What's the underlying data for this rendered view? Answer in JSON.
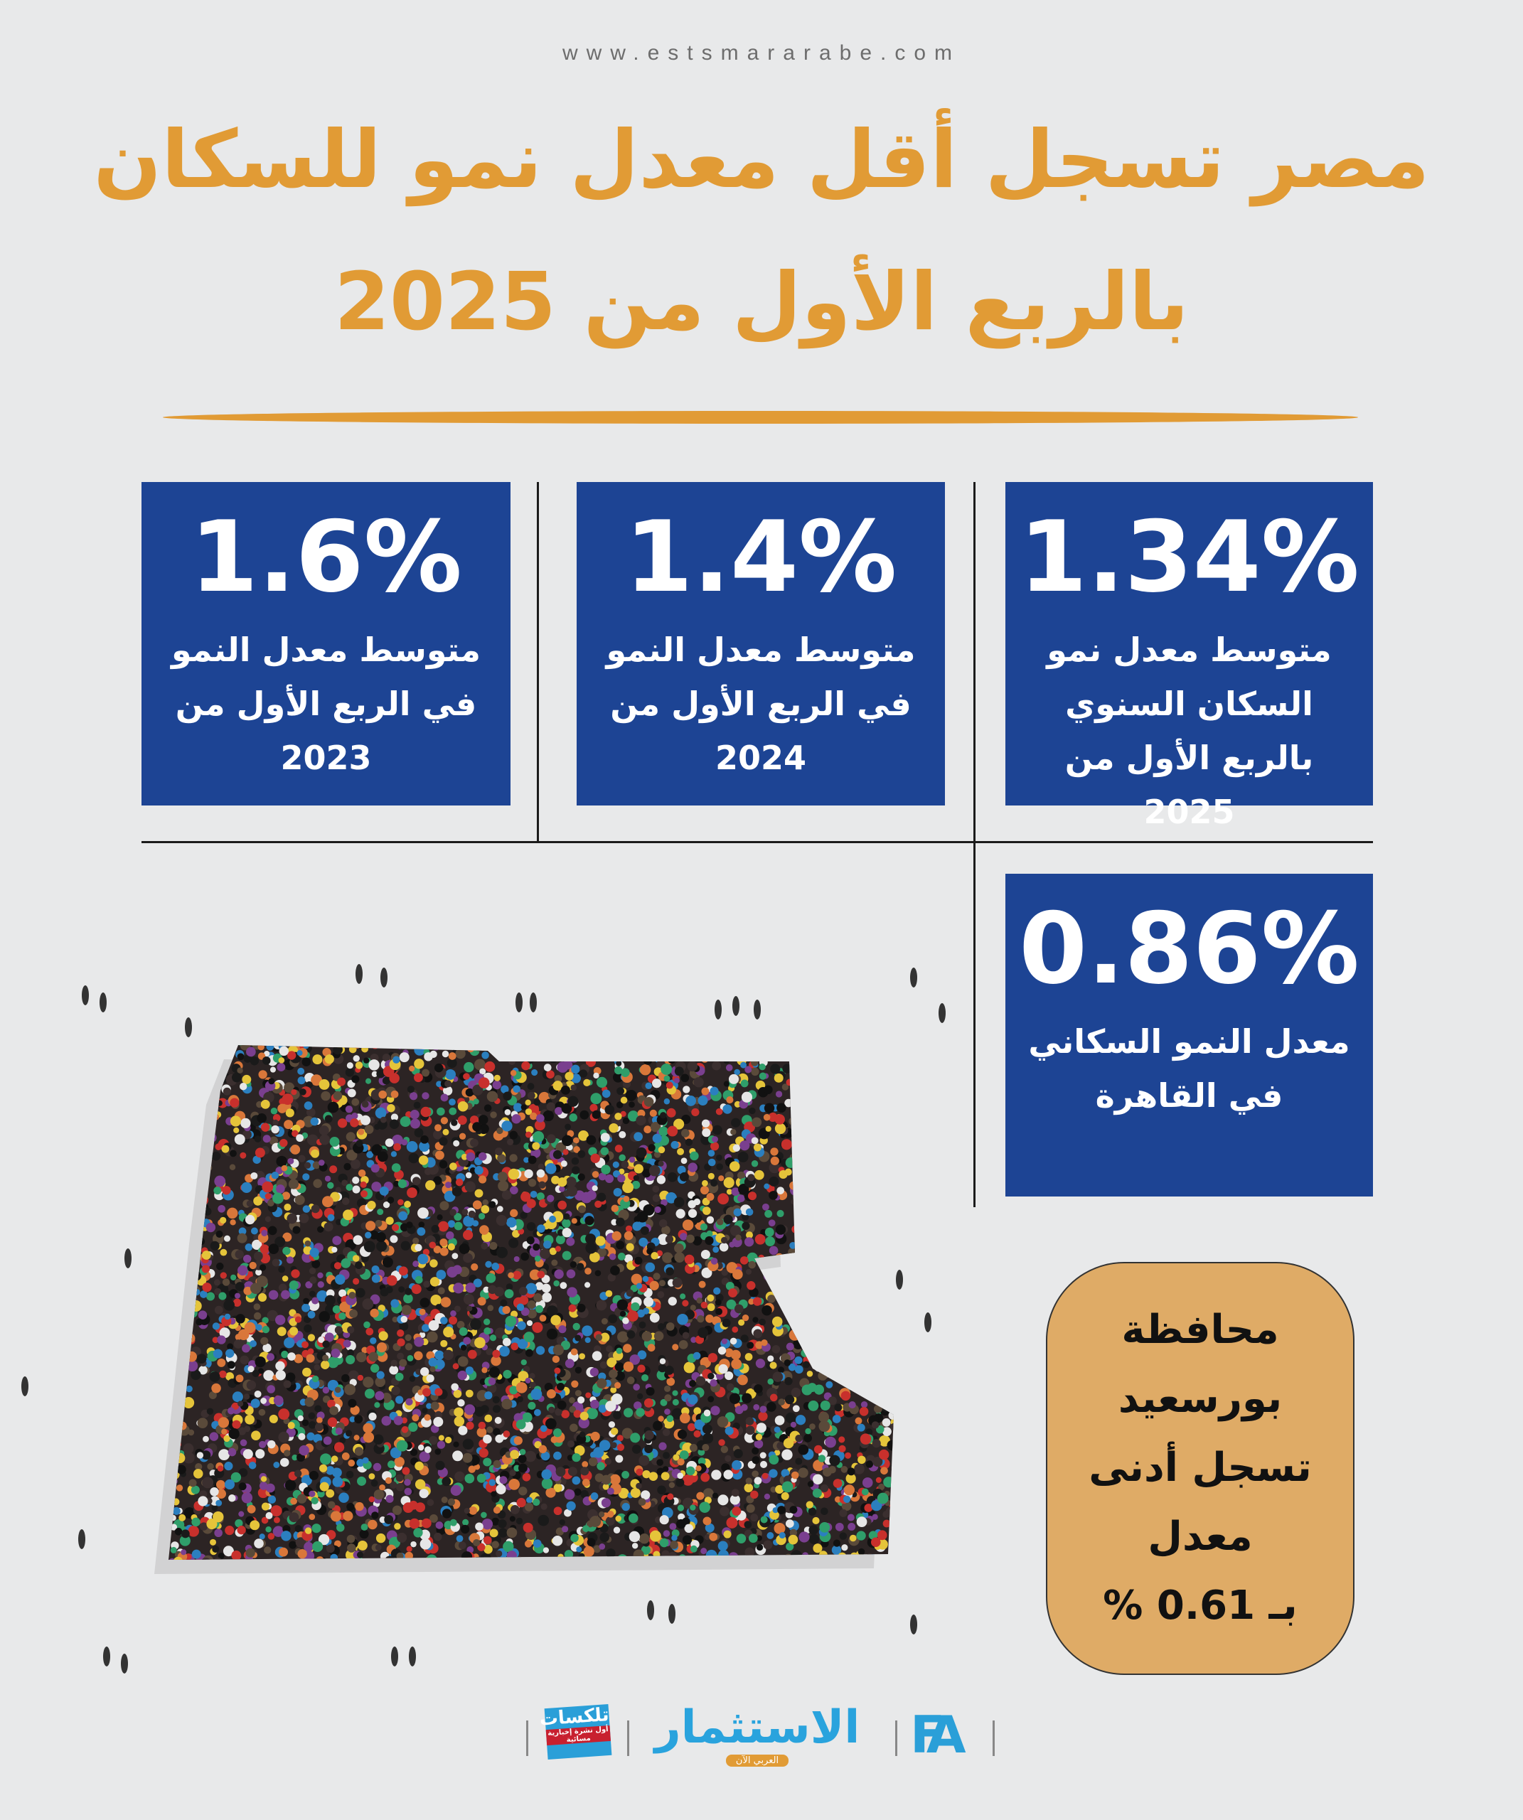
{
  "header": {
    "url": "www.estsmararabe.com",
    "title_line1": "مصر تسجل أقل معدل نمو للسكان",
    "title_line2": "بالربع الأول من 2025"
  },
  "stats": [
    {
      "value": "1.34%",
      "label": "متوسط معدل نمو السكان السنوي بالربع الأول من 2025"
    },
    {
      "value": "1.4%",
      "label": "متوسط معدل النمو في الربع الأول من 2024"
    },
    {
      "value": "1.6%",
      "label": "متوسط معدل النمو في الربع الأول من 2023"
    },
    {
      "value": "0.86%",
      "label": "معدل النمو السكاني في القاهرة"
    }
  ],
  "highlight": {
    "lines": [
      "محافظة",
      "بورسعيد",
      "تسجل أدنى",
      "معدل",
      "بـ 0.61 %"
    ]
  },
  "logos": {
    "talksat": "تلكسات",
    "talksat_tag": "أول نشرة إخبارية مسائية",
    "estsmar": "الاستثمار",
    "estsmar_tag": "العربي الآن",
    "fa": "FA"
  },
  "colors": {
    "gold": "#e19b35",
    "blue": "#1d4494",
    "pill": "#dfab66"
  }
}
